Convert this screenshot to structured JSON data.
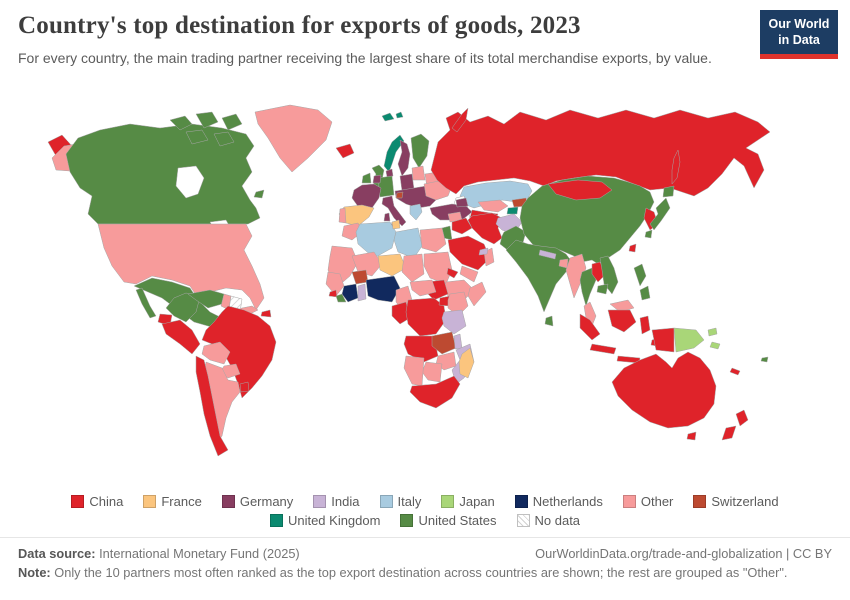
{
  "header": {
    "title": "Country's top destination for exports of goods, 2023",
    "subtitle": "For every country, the main trading partner receiving the largest share of its total merchandise exports, by value."
  },
  "brand": {
    "logo_line1": "Our World",
    "logo_line2": "in Data",
    "navy": "#1d3d63",
    "red": "#e0332c"
  },
  "legend": {
    "rows": [
      [
        "china",
        "france",
        "germany",
        "india",
        "italy",
        "japan",
        "netherlands",
        "other",
        "switzerland"
      ],
      [
        "united_kingdom",
        "united_states",
        "no_data"
      ]
    ]
  },
  "chart_data": {
    "type": "choropleth_map",
    "title": "Country's top destination for exports of goods, 2023",
    "categories": {
      "china": {
        "label": "China",
        "color": "#df232a"
      },
      "france": {
        "label": "France",
        "color": "#fbc57e"
      },
      "germany": {
        "label": "Germany",
        "color": "#883e61"
      },
      "india": {
        "label": "India",
        "color": "#c8b3d6"
      },
      "italy": {
        "label": "Italy",
        "color": "#a8cbe0"
      },
      "japan": {
        "label": "Japan",
        "color": "#a9d678"
      },
      "netherlands": {
        "label": "Netherlands",
        "color": "#11295e"
      },
      "other": {
        "label": "Other",
        "color": "#f79b9b"
      },
      "switzerland": {
        "label": "Switzerland",
        "color": "#bd4a31"
      },
      "united_kingdom": {
        "label": "United Kingdom",
        "color": "#0b8a70"
      },
      "united_states": {
        "label": "United States",
        "color": "#568b45"
      },
      "no_data": {
        "label": "No data",
        "color": null,
        "pattern": "diagonal-hatch"
      }
    },
    "regions": {
      "chukotka_russia": "china",
      "russia": "china",
      "novaya_zemlya": "china",
      "sakhalin": "china",
      "alaska": "other",
      "usa": "other",
      "greenland": "other",
      "canada": "united_states",
      "mexico": "united_states",
      "central_america": "united_states",
      "panama": "china",
      "cuba": "other",
      "hispaniola": "china",
      "jamaica": "united_kingdom",
      "colombia": "united_states",
      "venezuela": "united_states",
      "guyana": "other",
      "suriname_french_guiana": "no_data",
      "ecuador": "china",
      "peru": "china",
      "brazil": "china",
      "bolivia": "other",
      "paraguay": "other",
      "chile": "china",
      "argentina": "other",
      "uruguay": "china",
      "iceland": "china",
      "ireland": "united_states",
      "britain": "united_states",
      "norway": "united_kingdom",
      "svalbard": "united_kingdom",
      "sweden": "germany",
      "finland": "united_states",
      "denmark": "germany",
      "baltic_states": "other",
      "belarus": "other",
      "poland": "germany",
      "germany": "united_states",
      "low_countries": "germany",
      "france": "germany",
      "spain": "france",
      "portugal": "other",
      "italy": "germany",
      "central_europe": "germany",
      "slovenia": "switzerland",
      "greece": "italy",
      "ukraine": "other",
      "turkey": "germany",
      "caucasus": "germany",
      "kazakhstan": "italy",
      "uzbekistan": "other",
      "turkmenistan": "china",
      "kyrgyzstan": "switzerland",
      "tajikistan": "united_kingdom",
      "iran": "china",
      "iraq": "china",
      "syria": "other",
      "israel_jordan": "united_states",
      "saudi_arabia": "china",
      "yemen": "other",
      "oman": "other",
      "uae": "india",
      "afghanistan": "india",
      "pakistan": "united_states",
      "india": "united_states",
      "nepal": "india",
      "bangladesh": "other",
      "sri_lanka": "united_states",
      "myanmar": "other",
      "thailand": "united_states",
      "laos": "china",
      "vietnam": "united_states",
      "cambodia": "united_states",
      "malaysia": "other",
      "china": "united_states",
      "mongolia": "china",
      "korea": "china",
      "japan": "united_states",
      "taiwan": "china",
      "philippines": "united_states",
      "indonesia": "china",
      "papua_new_guinea": "japan",
      "solomon_islands": "japan",
      "fiji": "united_states",
      "new_caledonia": "china",
      "australia": "china",
      "new_zealand": "china",
      "morocco": "other",
      "algeria": "italy",
      "tunisia": "france",
      "libya": "italy",
      "egypt": "other",
      "mauritania": "other",
      "senegal_guinea": "other",
      "mali": "other",
      "niger": "france",
      "chad": "other",
      "sudan": "other",
      "eritrea": "china",
      "ethiopia": "other",
      "somalia": "other",
      "south_sudan": "china",
      "sierra_leone": "china",
      "liberia": "united_states",
      "cote_divoire": "netherlands",
      "burkina_faso": "switzerland",
      "ghana": "india",
      "nigeria": "netherlands",
      "cameroon": "other",
      "central_african_republic": "other",
      "gabon_congo": "china",
      "dr_congo": "china",
      "uganda": "china",
      "kenya": "other",
      "tanzania": "india",
      "angola": "china",
      "zambia": "switzerland",
      "malawi": "india",
      "mozambique": "india",
      "zimbabwe": "other",
      "botswana": "other",
      "namibia": "other",
      "south_africa": "china",
      "madagascar": "france"
    }
  },
  "footer": {
    "datasource_label": "Data source:",
    "datasource_text": "International Monetary Fund (2025)",
    "link_text": "OurWorldinData.org/trade-and-globalization | CC BY",
    "note_label": "Note:",
    "note_text": "Only the 10 partners most often ranked as the top export destination across countries are shown; the rest are grouped as \"Other\"."
  }
}
